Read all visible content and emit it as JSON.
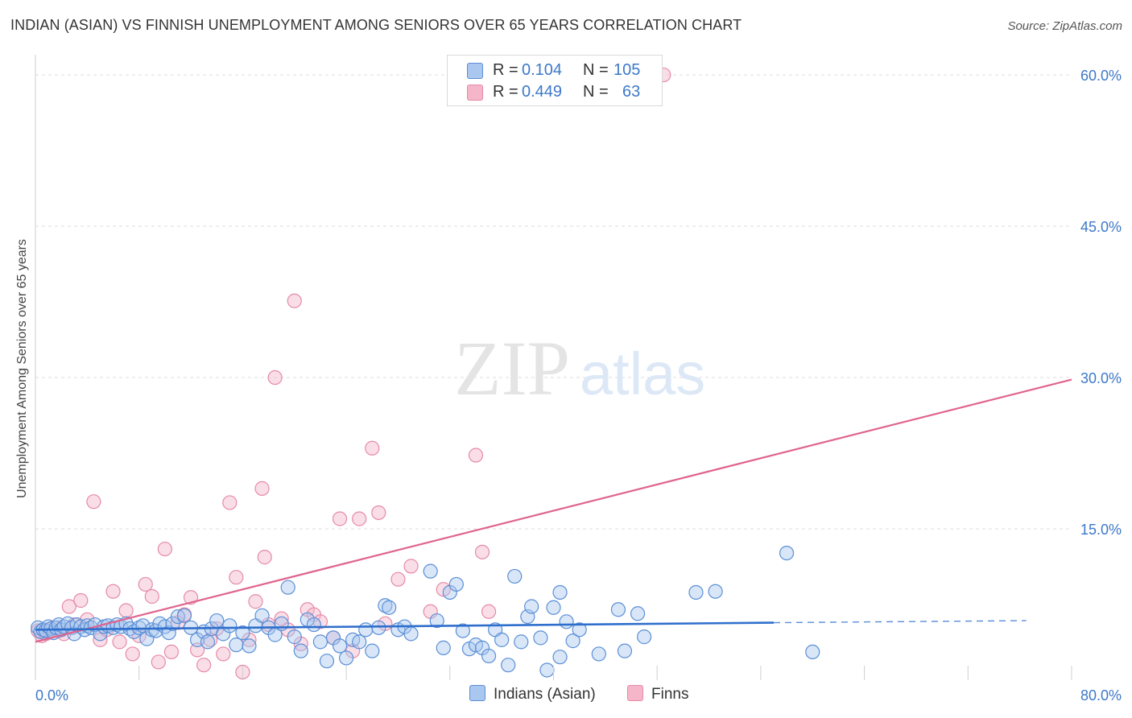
{
  "title": "INDIAN (ASIAN) VS FINNISH UNEMPLOYMENT AMONG SENIORS OVER 65 YEARS CORRELATION CHART",
  "source": "Source: ZipAtlas.com",
  "watermark": {
    "zip": "ZIP",
    "atlas": "atlas"
  },
  "legend_top": [
    {
      "r_label": "R =",
      "r_value": "0.104",
      "n_label": "N =",
      "n_value": "105"
    },
    {
      "r_label": "R =",
      "r_value": "0.449",
      "n_label": "N =",
      "n_value": "63"
    }
  ],
  "legend_bottom": [
    "Indians (Asian)",
    "Finns"
  ],
  "colors": {
    "blue_fill": "#a9c7ef",
    "blue_stroke": "#5b8fd6",
    "blue_line": "#2f6fcc",
    "pink_fill": "#f5b6c9",
    "pink_stroke": "#e58aa8",
    "pink_line": "#e0648e",
    "grid": "#dddddd",
    "axis_label": "#3d78c8"
  },
  "chart_data": {
    "type": "scatter",
    "title": "INDIAN (ASIAN) VS FINNISH UNEMPLOYMENT AMONG SENIORS OVER 65 YEARS CORRELATION CHART",
    "xlabel": "",
    "ylabel": "Unemployment Among Seniors over 65 years",
    "xlim": [
      0,
      80
    ],
    "ylim": [
      0,
      62
    ],
    "x_tick_labels": [
      "0.0%",
      "80.0%"
    ],
    "y_ticks": [
      15,
      30,
      45,
      60
    ],
    "y_tick_labels": [
      "15.0%",
      "30.0%",
      "45.0%",
      "60.0%"
    ],
    "grid": true,
    "series": [
      {
        "name": "Indians (Asian)",
        "R": 0.104,
        "N": 105,
        "trend": {
          "x0": 0,
          "y0": 5.0,
          "x1": 57,
          "y1": 5.7,
          "dashed_to_x": 76.5,
          "dashed_y": 5.9
        },
        "points": [
          [
            0.2,
            5.2
          ],
          [
            0.4,
            4.8
          ],
          [
            0.6,
            5.0
          ],
          [
            0.8,
            4.9
          ],
          [
            1.0,
            5.3
          ],
          [
            1.2,
            5.1
          ],
          [
            1.4,
            4.7
          ],
          [
            1.6,
            5.2
          ],
          [
            1.8,
            5.5
          ],
          [
            2.0,
            5.0
          ],
          [
            2.2,
            5.3
          ],
          [
            2.5,
            5.6
          ],
          [
            2.8,
            5.2
          ],
          [
            3.0,
            4.6
          ],
          [
            3.2,
            5.5
          ],
          [
            3.5,
            5.3
          ],
          [
            3.8,
            5.0
          ],
          [
            4.0,
            5.4
          ],
          [
            4.3,
            5.2
          ],
          [
            4.6,
            5.5
          ],
          [
            5.0,
            4.6
          ],
          [
            5.3,
            5.3
          ],
          [
            5.6,
            5.4
          ],
          [
            6.0,
            5.2
          ],
          [
            6.3,
            5.5
          ],
          [
            6.6,
            5.3
          ],
          [
            7.0,
            5.6
          ],
          [
            7.3,
            5.1
          ],
          [
            7.6,
            4.8
          ],
          [
            8.0,
            5.2
          ],
          [
            8.3,
            5.4
          ],
          [
            8.6,
            4.1
          ],
          [
            9.0,
            5.0
          ],
          [
            9.3,
            4.9
          ],
          [
            9.6,
            5.6
          ],
          [
            10.0,
            5.3
          ],
          [
            10.3,
            4.7
          ],
          [
            10.6,
            5.6
          ],
          [
            11.0,
            6.3
          ],
          [
            11.5,
            6.4
          ],
          [
            12.0,
            5.2
          ],
          [
            12.5,
            4.0
          ],
          [
            13.0,
            4.8
          ],
          [
            13.3,
            3.8
          ],
          [
            13.6,
            5.1
          ],
          [
            14.0,
            5.9
          ],
          [
            14.5,
            4.6
          ],
          [
            15.0,
            5.4
          ],
          [
            15.5,
            3.5
          ],
          [
            16.0,
            4.7
          ],
          [
            16.5,
            3.4
          ],
          [
            17.0,
            5.4
          ],
          [
            17.5,
            6.4
          ],
          [
            18.0,
            5.2
          ],
          [
            18.5,
            4.5
          ],
          [
            19.0,
            5.6
          ],
          [
            19.5,
            9.2
          ],
          [
            20.0,
            4.3
          ],
          [
            20.5,
            2.9
          ],
          [
            21.0,
            6.0
          ],
          [
            21.5,
            5.5
          ],
          [
            22.0,
            3.8
          ],
          [
            22.5,
            1.9
          ],
          [
            23.0,
            4.2
          ],
          [
            23.5,
            3.4
          ],
          [
            24.0,
            2.2
          ],
          [
            24.5,
            4.0
          ],
          [
            25.0,
            3.8
          ],
          [
            25.5,
            5.0
          ],
          [
            26.0,
            2.9
          ],
          [
            26.5,
            5.2
          ],
          [
            27.0,
            7.4
          ],
          [
            27.3,
            7.2
          ],
          [
            28.0,
            5.0
          ],
          [
            28.5,
            5.3
          ],
          [
            29.0,
            4.6
          ],
          [
            30.5,
            10.8
          ],
          [
            31.0,
            5.9
          ],
          [
            31.5,
            3.2
          ],
          [
            32.0,
            8.7
          ],
          [
            32.5,
            9.5
          ],
          [
            33.0,
            4.9
          ],
          [
            33.5,
            3.1
          ],
          [
            34.0,
            3.5
          ],
          [
            34.5,
            3.2
          ],
          [
            35.0,
            2.4
          ],
          [
            35.5,
            5.0
          ],
          [
            36.0,
            4.0
          ],
          [
            36.5,
            1.5
          ],
          [
            37.0,
            10.3
          ],
          [
            37.5,
            3.8
          ],
          [
            38.0,
            6.3
          ],
          [
            38.3,
            7.3
          ],
          [
            39.0,
            4.2
          ],
          [
            39.5,
            1.0
          ],
          [
            40.0,
            7.2
          ],
          [
            40.5,
            8.7
          ],
          [
            41.0,
            5.8
          ],
          [
            41.5,
            3.9
          ],
          [
            42.0,
            5.0
          ],
          [
            45.0,
            7.0
          ],
          [
            46.5,
            6.6
          ],
          [
            47.0,
            4.3
          ],
          [
            51.0,
            8.7
          ],
          [
            52.5,
            8.8
          ],
          [
            58.0,
            12.6
          ],
          [
            60.0,
            2.8
          ],
          [
            40.5,
            2.3
          ],
          [
            43.5,
            2.6
          ],
          [
            45.5,
            2.9
          ]
        ]
      },
      {
        "name": "Finns",
        "R": 0.449,
        "N": 63,
        "trend": {
          "x0": 0,
          "y0": 3.8,
          "x1": 80,
          "y1": 29.8
        },
        "points": [
          [
            0.2,
            4.9
          ],
          [
            0.5,
            4.4
          ],
          [
            0.8,
            4.6
          ],
          [
            1.1,
            4.8
          ],
          [
            1.4,
            5.2
          ],
          [
            1.8,
            4.9
          ],
          [
            2.2,
            4.6
          ],
          [
            2.6,
            7.3
          ],
          [
            3.0,
            5.5
          ],
          [
            3.5,
            7.9
          ],
          [
            4.0,
            6.0
          ],
          [
            4.5,
            17.7
          ],
          [
            5.0,
            4.0
          ],
          [
            5.5,
            5.0
          ],
          [
            6.0,
            8.8
          ],
          [
            6.5,
            3.8
          ],
          [
            7.0,
            6.9
          ],
          [
            7.5,
            2.6
          ],
          [
            8.0,
            4.4
          ],
          [
            8.5,
            9.5
          ],
          [
            9.0,
            8.3
          ],
          [
            9.5,
            1.8
          ],
          [
            10.0,
            13.0
          ],
          [
            10.5,
            2.8
          ],
          [
            11.0,
            5.7
          ],
          [
            11.5,
            6.5
          ],
          [
            12.0,
            8.2
          ],
          [
            12.5,
            3.0
          ],
          [
            13.0,
            1.5
          ],
          [
            13.5,
            4.0
          ],
          [
            14.0,
            5.1
          ],
          [
            14.5,
            2.6
          ],
          [
            15.0,
            17.6
          ],
          [
            15.5,
            10.2
          ],
          [
            16.0,
            0.8
          ],
          [
            16.5,
            4.0
          ],
          [
            17.0,
            7.8
          ],
          [
            17.5,
            19.0
          ],
          [
            17.7,
            12.2
          ],
          [
            18.0,
            5.5
          ],
          [
            18.5,
            30.0
          ],
          [
            19.0,
            6.1
          ],
          [
            19.5,
            5.0
          ],
          [
            20.0,
            37.6
          ],
          [
            20.5,
            3.6
          ],
          [
            21.0,
            7.0
          ],
          [
            21.5,
            6.5
          ],
          [
            22.0,
            5.8
          ],
          [
            23.0,
            4.2
          ],
          [
            23.5,
            16.0
          ],
          [
            24.5,
            2.9
          ],
          [
            25.0,
            16.0
          ],
          [
            26.0,
            23.0
          ],
          [
            26.5,
            16.6
          ],
          [
            27.0,
            5.6
          ],
          [
            28.0,
            10.0
          ],
          [
            29.0,
            11.3
          ],
          [
            30.5,
            6.8
          ],
          [
            31.5,
            9.0
          ],
          [
            34.0,
            22.3
          ],
          [
            34.5,
            12.7
          ],
          [
            35.0,
            6.8
          ],
          [
            48.5,
            60.0
          ]
        ]
      }
    ]
  }
}
